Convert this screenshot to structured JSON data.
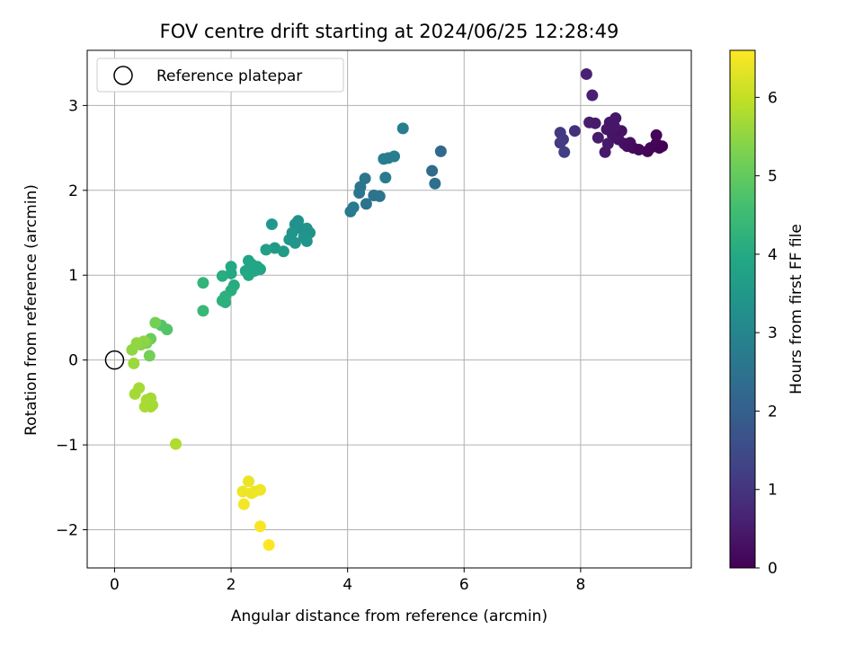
{
  "chart_data": {
    "type": "scatter",
    "title": "FOV centre drift starting at 2024/06/25 12:28:49",
    "xlabel": "Angular distance from reference (arcmin)",
    "ylabel": "Rotation from reference (arcmin)",
    "xlim": [
      -0.47,
      9.9
    ],
    "ylim": [
      -2.45,
      3.65
    ],
    "xticks": [
      0,
      2,
      4,
      6,
      8
    ],
    "xtick_labels": [
      "0",
      "2",
      "4",
      "6",
      "8"
    ],
    "yticks": [
      -2,
      -1,
      0,
      1,
      2,
      3
    ],
    "ytick_labels": [
      "−2",
      "−1",
      "0",
      "1",
      "2",
      "3"
    ],
    "grid": true,
    "legend": {
      "location": "upper-left",
      "entries": [
        "Reference platepar"
      ]
    },
    "reference_point": {
      "x": 0,
      "y": 0,
      "label": "Reference platepar"
    },
    "colorbar": {
      "label": "Hours from first FF file",
      "colormap": "viridis",
      "range": [
        0,
        6.6
      ],
      "ticks": [
        0,
        1,
        2,
        3,
        4,
        5,
        6
      ],
      "tick_labels": [
        "0",
        "1",
        "2",
        "3",
        "4",
        "5",
        "6"
      ]
    },
    "series": [
      {
        "values_note": "points as [x, y, hours]",
        "points": [
          [
            8.1,
            3.37,
            0.6
          ],
          [
            8.2,
            3.12,
            0.6
          ],
          [
            8.15,
            2.8,
            0.5
          ],
          [
            8.25,
            2.79,
            0.5
          ],
          [
            8.3,
            2.62,
            0.5
          ],
          [
            8.5,
            2.8,
            0.4
          ],
          [
            8.6,
            2.85,
            0.4
          ],
          [
            8.45,
            2.72,
            0.4
          ],
          [
            8.55,
            2.65,
            0.35
          ],
          [
            8.65,
            2.6,
            0.35
          ],
          [
            8.7,
            2.7,
            0.3
          ],
          [
            8.75,
            2.55,
            0.3
          ],
          [
            8.8,
            2.52,
            0.25
          ],
          [
            8.85,
            2.56,
            0.25
          ],
          [
            8.9,
            2.5,
            0.2
          ],
          [
            8.42,
            2.45,
            0.45
          ],
          [
            8.47,
            2.55,
            0.45
          ],
          [
            8.58,
            2.75,
            0.4
          ],
          [
            9.0,
            2.48,
            0.15
          ],
          [
            9.15,
            2.46,
            0.1
          ],
          [
            9.2,
            2.5,
            0.1
          ],
          [
            9.3,
            2.55,
            0.05
          ],
          [
            9.35,
            2.5,
            0.05
          ],
          [
            9.3,
            2.65,
            0.05
          ],
          [
            9.4,
            2.52,
            0.02
          ],
          [
            7.65,
            2.68,
            1.1
          ],
          [
            7.7,
            2.6,
            1.1
          ],
          [
            7.65,
            2.56,
            1.15
          ],
          [
            7.72,
            2.45,
            1.2
          ],
          [
            7.9,
            2.7,
            0.9
          ],
          [
            5.6,
            2.46,
            2.25
          ],
          [
            5.45,
            2.23,
            2.3
          ],
          [
            5.5,
            2.08,
            2.4
          ],
          [
            4.95,
            2.73,
            2.8
          ],
          [
            4.8,
            2.4,
            2.8
          ],
          [
            4.7,
            2.38,
            2.8
          ],
          [
            4.62,
            2.37,
            2.8
          ],
          [
            4.65,
            2.15,
            2.7
          ],
          [
            4.3,
            2.14,
            2.6
          ],
          [
            4.22,
            2.04,
            2.6
          ],
          [
            4.2,
            1.97,
            2.6
          ],
          [
            4.45,
            1.94,
            2.5
          ],
          [
            4.55,
            1.93,
            2.5
          ],
          [
            4.32,
            1.84,
            2.5
          ],
          [
            4.1,
            1.8,
            2.7
          ],
          [
            4.05,
            1.75,
            2.7
          ],
          [
            2.7,
            1.6,
            3.5
          ],
          [
            3.1,
            1.6,
            3.3
          ],
          [
            3.15,
            1.64,
            3.3
          ],
          [
            3.2,
            1.55,
            3.3
          ],
          [
            3.3,
            1.55,
            3.35
          ],
          [
            3.35,
            1.5,
            3.35
          ],
          [
            3.25,
            1.45,
            3.4
          ],
          [
            3.3,
            1.4,
            3.4
          ],
          [
            3.0,
            1.42,
            3.45
          ],
          [
            3.1,
            1.38,
            3.45
          ],
          [
            3.05,
            1.5,
            3.4
          ],
          [
            2.9,
            1.28,
            3.6
          ],
          [
            2.75,
            1.32,
            3.6
          ],
          [
            2.6,
            1.3,
            3.7
          ],
          [
            2.45,
            1.1,
            3.85
          ],
          [
            2.3,
            1.17,
            3.85
          ],
          [
            2.35,
            1.13,
            3.9
          ],
          [
            2.4,
            1.05,
            3.9
          ],
          [
            2.5,
            1.07,
            3.9
          ],
          [
            2.25,
            1.05,
            3.9
          ],
          [
            2.3,
            1.0,
            3.95
          ],
          [
            2.0,
            1.1,
            4.0
          ],
          [
            2.0,
            1.02,
            4.0
          ],
          [
            1.85,
            0.99,
            4.1
          ],
          [
            2.05,
            0.88,
            4.05
          ],
          [
            2.0,
            0.82,
            4.1
          ],
          [
            1.9,
            0.75,
            4.2
          ],
          [
            1.85,
            0.7,
            4.2
          ],
          [
            1.9,
            0.68,
            4.2
          ],
          [
            1.52,
            0.91,
            4.3
          ],
          [
            1.52,
            0.58,
            4.4
          ],
          [
            0.9,
            0.36,
            4.8
          ],
          [
            0.8,
            0.41,
            4.8
          ],
          [
            0.7,
            0.44,
            5.2
          ],
          [
            0.62,
            0.25,
            5.1
          ],
          [
            0.55,
            0.2,
            5.3
          ],
          [
            0.5,
            0.22,
            5.5
          ],
          [
            0.45,
            0.18,
            5.4
          ],
          [
            0.38,
            0.2,
            5.5
          ],
          [
            0.3,
            0.12,
            5.5
          ],
          [
            0.6,
            0.05,
            5.2
          ],
          [
            0.33,
            -0.04,
            5.6
          ],
          [
            0.35,
            -0.4,
            5.7
          ],
          [
            0.42,
            -0.33,
            5.7
          ],
          [
            0.55,
            -0.47,
            5.7
          ],
          [
            0.62,
            -0.45,
            5.7
          ],
          [
            0.58,
            -0.52,
            5.75
          ],
          [
            0.62,
            -0.55,
            5.75
          ],
          [
            0.52,
            -0.55,
            5.75
          ],
          [
            0.65,
            -0.53,
            5.7
          ],
          [
            1.05,
            -0.99,
            5.8
          ],
          [
            2.3,
            -1.43,
            6.4
          ],
          [
            2.2,
            -1.55,
            6.45
          ],
          [
            2.35,
            -1.57,
            6.45
          ],
          [
            2.4,
            -1.55,
            6.45
          ],
          [
            2.5,
            -1.53,
            6.45
          ],
          [
            2.22,
            -1.7,
            6.5
          ],
          [
            2.5,
            -1.96,
            6.55
          ],
          [
            2.65,
            -2.18,
            6.6
          ]
        ]
      }
    ]
  }
}
